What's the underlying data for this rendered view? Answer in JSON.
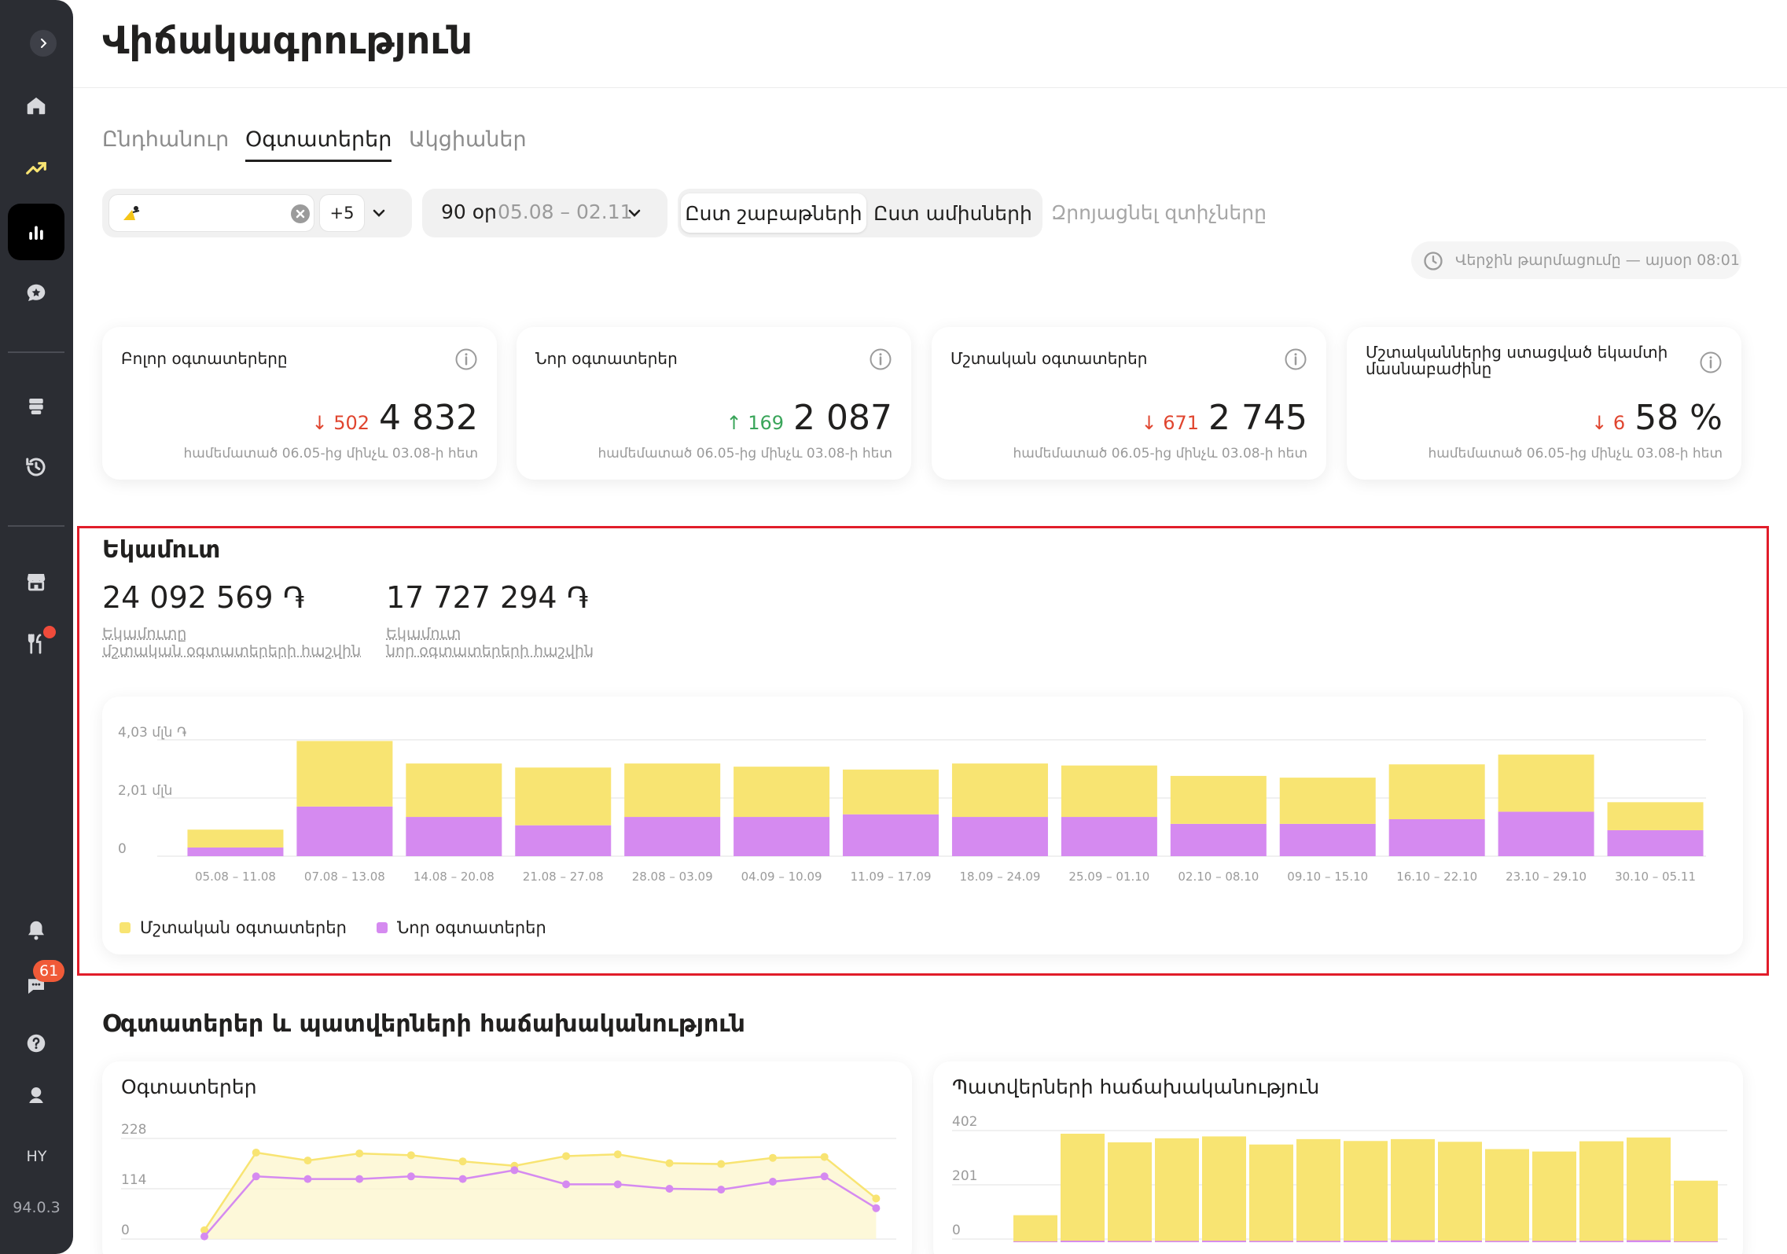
{
  "sidebar": {
    "lang": "HY",
    "version": "94.0.3",
    "chat_badge": "61",
    "items": [
      "home",
      "trends",
      "statistics",
      "reviews",
      "menu",
      "history",
      "store",
      "restaurant",
      "notifications",
      "chat",
      "help",
      "support"
    ]
  },
  "header": {
    "title": "Վիճակագրություն"
  },
  "tabs": [
    {
      "label": "Ընդհանուր",
      "active": false
    },
    {
      "label": "Օգտատերեր",
      "active": true
    },
    {
      "label": "Ակցիաներ",
      "active": false
    }
  ],
  "filters": {
    "restaurant_more": "+5",
    "period_days": "90 օր",
    "period_range": "05.08 – 02.11",
    "by_weeks": "Ըստ շաբաթների",
    "by_months": "Ըստ ամիսների",
    "reset": "Զրոյացնել զտիչները",
    "updated": "Վերջին թարմացումը — այսօր 08:01"
  },
  "kpis": [
    {
      "title": "Բոլոր օգտատերերը",
      "delta": "↓ 502",
      "dir": "down",
      "value": "4 832",
      "note": "համեմատած 06.05-ից մինչև 03.08-ի հետ"
    },
    {
      "title": "Նոր օգտատերեր",
      "delta": "↑ 169",
      "dir": "up",
      "value": "2 087",
      "note": "համեմատած 06.05-ից մինչև 03.08-ի հետ"
    },
    {
      "title": "Մշտական օգտատերեր",
      "delta": "↓ 671",
      "dir": "down",
      "value": "2 745",
      "note": "համեմատած 06.05-ից մինչև 03.08-ի հետ"
    },
    {
      "title": "Մշտականներից ստացված եկամտի մասնաբաժինը",
      "delta": "↓ 6",
      "dir": "down",
      "value": "58 %",
      "note": "համեմատած 06.05-ից մինչև 03.08-ի հետ"
    }
  ],
  "revenue": {
    "title": "Եկամուտ",
    "regular_amount": "24 092 569 ֏",
    "regular_label_1": "Եկամուտը",
    "regular_label_2": "մշտական օգտատերերի հաշվին",
    "new_amount": "17 727 294 ֏",
    "new_label_1": "Եկամուտ",
    "new_label_2": "նոր օգտատերերի հաշվին",
    "legend_regular": "Մշտական օգտատերեր",
    "legend_new": "Նոր օգտատերեր"
  },
  "bottom": {
    "title": "Օգտատերեր և պատվերների հաճախականություն",
    "users_card_title": "Օգտատերեր",
    "orders_card_title": "Պատվերների հաճախականություն"
  },
  "colors": {
    "regular": "#f8e472",
    "new": "#d58af0",
    "accent": "#f8e472"
  },
  "chart_data": [
    {
      "type": "bar",
      "stacked": true,
      "title": "Եկամուտ",
      "categories": [
        "05.08 – 11.08",
        "07.08 – 13.08",
        "14.08 – 20.08",
        "21.08 – 27.08",
        "28.08 – 03.09",
        "04.09 – 10.09",
        "11.09 – 17.09",
        "18.09 – 24.09",
        "25.09 – 01.10",
        "02.10 – 08.10",
        "09.10 – 15.10",
        "16.10 – 22.10",
        "23.10 – 29.10",
        "30.10 – 05.11"
      ],
      "y_ticks": [
        "0",
        "2,01 մլն",
        "4,03 մլն ֏"
      ],
      "ylim": [
        0,
        4.03
      ],
      "series": [
        {
          "name": "Նոր օգտատերեր",
          "values": [
            0.3,
            1.72,
            1.36,
            1.07,
            1.36,
            1.36,
            1.45,
            1.36,
            1.36,
            1.12,
            1.12,
            1.28,
            1.54,
            0.9
          ]
        },
        {
          "name": "Մշտական օգտատերեր",
          "values": [
            0.62,
            2.27,
            1.85,
            2.0,
            1.85,
            1.74,
            1.55,
            1.85,
            1.78,
            1.66,
            1.6,
            1.9,
            1.98,
            0.97
          ]
        }
      ]
    },
    {
      "type": "line",
      "title": "Օգտատերեր",
      "y_ticks": [
        "0",
        "114",
        "228"
      ],
      "ylim": [
        0,
        228
      ],
      "series": [
        {
          "name": "Մշտական օգտատերեր",
          "values": [
            20,
            196,
            178,
            194,
            190,
            176,
            166,
            188,
            192,
            172,
            170,
            184,
            186,
            92
          ]
        },
        {
          "name": "Նոր օգտատերեր",
          "values": [
            6,
            142,
            136,
            136,
            142,
            136,
            156,
            124,
            124,
            114,
            112,
            130,
            142,
            70
          ]
        }
      ]
    },
    {
      "type": "bar",
      "title": "Պատվերների հաճախականություն",
      "y_ticks": [
        "0",
        "201",
        "402"
      ],
      "ylim": [
        0,
        402
      ],
      "series": [
        {
          "name": "Մշտական օգտատերեր",
          "values": [
            100,
            402,
            370,
            385,
            392,
            362,
            382,
            375,
            382,
            372,
            345,
            336,
            374,
            388,
            228
          ]
        },
        {
          "name": "Նոր օգտատերեր",
          "values": [
            8,
            14,
            12,
            12,
            14,
            12,
            12,
            14,
            18,
            14,
            12,
            12,
            12,
            18,
            8
          ]
        }
      ]
    }
  ]
}
